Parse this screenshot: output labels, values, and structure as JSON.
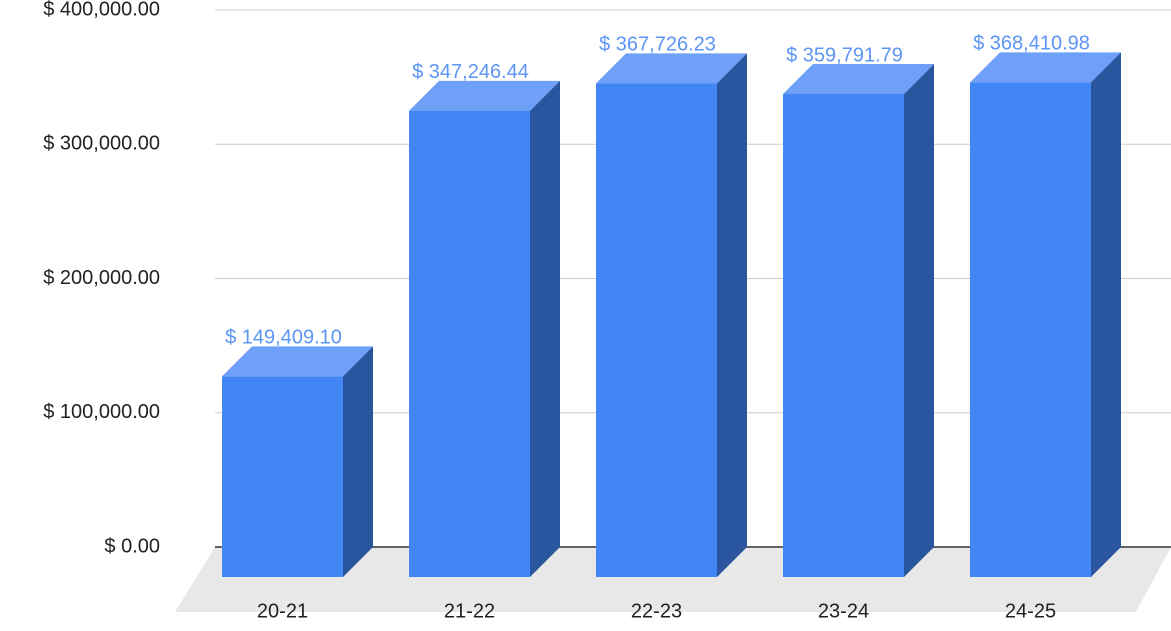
{
  "chart_data": {
    "type": "bar3d",
    "categories": [
      "20-21",
      "21-22",
      "22-23",
      "23-24",
      "24-25"
    ],
    "values": [
      149409.1,
      347246.44,
      367726.23,
      359791.79,
      368410.98
    ],
    "value_labels": [
      "$ 149,409.10",
      "$ 347,246.44",
      "$ 367,726.23",
      "$ 359,791.79",
      "$ 368,410.98"
    ],
    "color": "#4285f4",
    "ylim": [
      0,
      400000
    ],
    "yticks": [
      {
        "value": 0,
        "label": "$ 0.00"
      },
      {
        "value": 100000,
        "label": "$ 100,000.00"
      },
      {
        "value": 200000,
        "label": "$ 200,000.00"
      },
      {
        "value": 300000,
        "label": "$ 300,000.00"
      },
      {
        "value": 400000,
        "label": "$ 400,000.00"
      }
    ],
    "grid": true
  }
}
